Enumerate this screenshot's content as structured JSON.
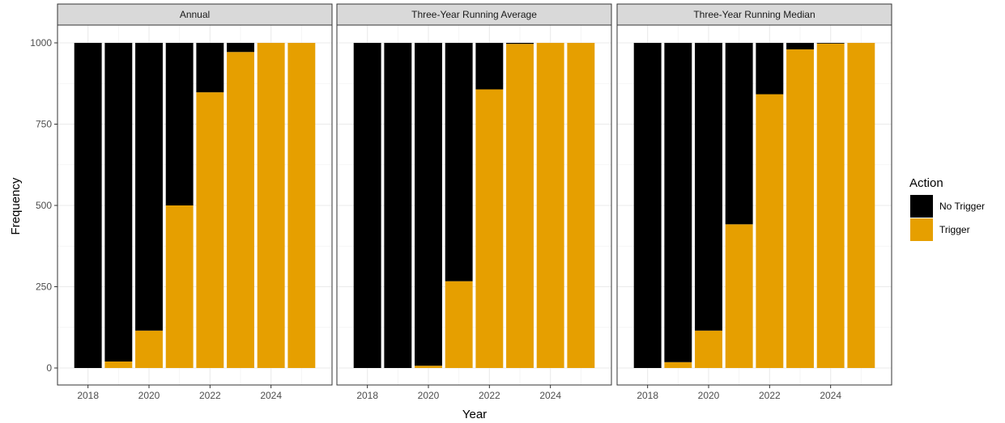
{
  "chart_data": {
    "type": "bar",
    "stacked": true,
    "xlabel": "Year",
    "ylabel": "Frequency",
    "ylim": [
      0,
      1000
    ],
    "yticks": [
      0,
      250,
      500,
      750,
      1000
    ],
    "xlim": [
      2017,
      2026
    ],
    "xticks": [
      2018,
      2020,
      2022,
      2024
    ],
    "grid": true,
    "legend": {
      "title": "Action",
      "position": "right",
      "entries": [
        {
          "name": "No Trigger",
          "color": "#000000"
        },
        {
          "name": "Trigger",
          "color": "#E69F00"
        }
      ]
    },
    "panels": [
      {
        "title": "Annual",
        "x": [
          2018,
          2019,
          2020,
          2021,
          2022,
          2023,
          2024,
          2025
        ],
        "series": [
          {
            "name": "No Trigger",
            "values": [
              1000,
              980,
              885,
              500,
              152,
              28,
              0,
              0
            ]
          },
          {
            "name": "Trigger",
            "values": [
              0,
              20,
              115,
              500,
              848,
              972,
              1000,
              1000
            ]
          }
        ]
      },
      {
        "title": "Three-Year Running Average",
        "x": [
          2018,
          2019,
          2020,
          2021,
          2022,
          2023,
          2024,
          2025
        ],
        "series": [
          {
            "name": "No Trigger",
            "values": [
              1000,
              1000,
              993,
              733,
              143,
              3,
              0,
              0
            ]
          },
          {
            "name": "Trigger",
            "values": [
              0,
              0,
              7,
              267,
              857,
              997,
              1000,
              1000
            ]
          }
        ]
      },
      {
        "title": "Three-Year Running Median",
        "x": [
          2018,
          2019,
          2020,
          2021,
          2022,
          2023,
          2024,
          2025
        ],
        "series": [
          {
            "name": "No Trigger",
            "values": [
              1000,
              982,
              885,
              558,
              158,
              20,
              2,
              0
            ]
          },
          {
            "name": "Trigger",
            "values": [
              0,
              18,
              115,
              442,
              842,
              980,
              998,
              1000
            ]
          }
        ]
      }
    ]
  }
}
